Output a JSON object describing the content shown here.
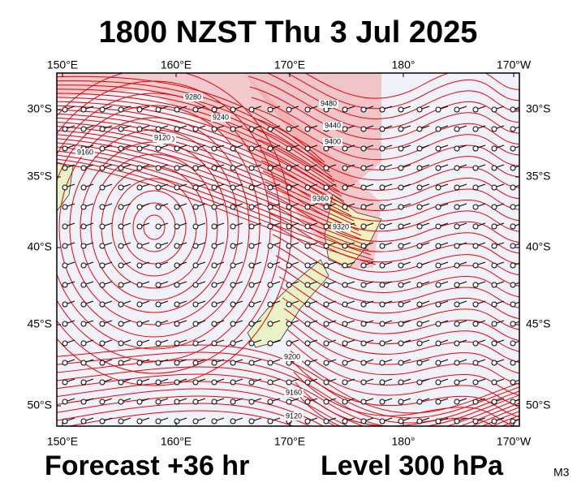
{
  "title": "1800 NZST Thu 3 Jul 2025",
  "lon_labels": [
    "150°E",
    "160°E",
    "170°E",
    "180°",
    "170°W"
  ],
  "lat_labels": [
    "30°S",
    "35°S",
    "40°S",
    "45°S",
    "50°S"
  ],
  "contour_labels": [
    "9280",
    "9240",
    "9200",
    "9160",
    "9120",
    "9480",
    "9440",
    "9400",
    "9360",
    "9320",
    "9200",
    "9160",
    "9120"
  ],
  "footer": {
    "forecast": "Forecast +36 hr",
    "level": "Level 300 hPa",
    "model": "M3"
  }
}
